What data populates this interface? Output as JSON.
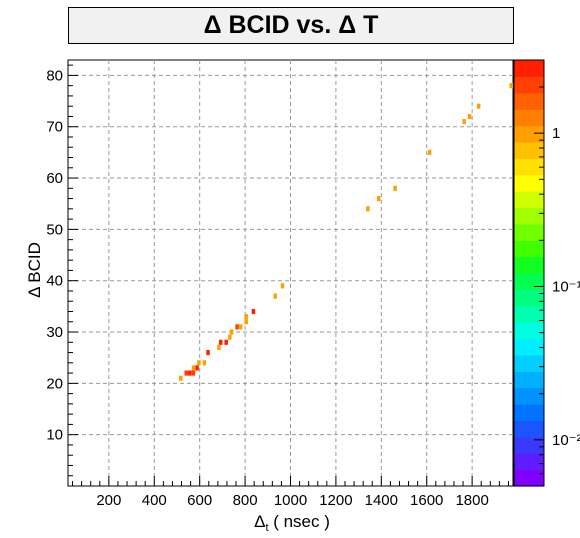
{
  "chart_data": {
    "type": "heatmap",
    "title": "Δ BCID  vs. Δ T",
    "xlabel": "Δt ( nsec )",
    "xlabel_main": "Δ",
    "xlabel_sub": "t",
    "xlabel_tail": " ( nsec )",
    "ylabel": "Δ BCID",
    "xlim": [
      20,
      1980
    ],
    "ylim": [
      0,
      83
    ],
    "x_ticks": [
      200,
      400,
      600,
      800,
      1000,
      1200,
      1400,
      1600,
      1800
    ],
    "y_ticks": [
      10,
      20,
      30,
      40,
      50,
      60,
      70,
      80
    ],
    "grid": true,
    "colorbar": {
      "scale": "log",
      "tick_labels": [
        "1",
        "10⁻¹",
        "10⁻²"
      ],
      "tick_values": [
        1,
        0.1,
        0.01
      ],
      "range": [
        0.005,
        3
      ],
      "colors": [
        "#7f00ff",
        "#5f1dff",
        "#3a3aff",
        "#1a55ff",
        "#0073ff",
        "#0092ff",
        "#00b0ff",
        "#00cfff",
        "#00eeff",
        "#00ffe0",
        "#00ffb0",
        "#00ff80",
        "#00ff50",
        "#10ff20",
        "#40ff00",
        "#70ff00",
        "#a0ff00",
        "#d0ff00",
        "#ffff00",
        "#ffe000",
        "#ffc000",
        "#ffa000",
        "#ff8000",
        "#ff6000",
        "#ff4000",
        "#ff2000"
      ]
    },
    "cells": [
      {
        "x": 513,
        "y": 21,
        "v": 1.0
      },
      {
        "x": 537,
        "y": 22,
        "v": 2.0
      },
      {
        "x": 553,
        "y": 22,
        "v": 2.5
      },
      {
        "x": 569,
        "y": 22,
        "v": 2.0
      },
      {
        "x": 569,
        "y": 23,
        "v": 1.0
      },
      {
        "x": 585,
        "y": 23,
        "v": 2.5
      },
      {
        "x": 593,
        "y": 24,
        "v": 1.0
      },
      {
        "x": 617,
        "y": 24,
        "v": 1.0
      },
      {
        "x": 633,
        "y": 26,
        "v": 2.5
      },
      {
        "x": 681,
        "y": 27,
        "v": 1.0
      },
      {
        "x": 689,
        "y": 28,
        "v": 2.5
      },
      {
        "x": 713,
        "y": 28,
        "v": 2.5
      },
      {
        "x": 729,
        "y": 29,
        "v": 1.0
      },
      {
        "x": 737,
        "y": 30,
        "v": 1.0
      },
      {
        "x": 761,
        "y": 31,
        "v": 2.0
      },
      {
        "x": 777,
        "y": 31,
        "v": 1.0
      },
      {
        "x": 801,
        "y": 32,
        "v": 1.0
      },
      {
        "x": 801,
        "y": 33,
        "v": 1.0
      },
      {
        "x": 833,
        "y": 34,
        "v": 2.5
      },
      {
        "x": 929,
        "y": 37,
        "v": 1.0
      },
      {
        "x": 961,
        "y": 39,
        "v": 1.0
      },
      {
        "x": 1337,
        "y": 54,
        "v": 1.0
      },
      {
        "x": 1385,
        "y": 56,
        "v": 1.0
      },
      {
        "x": 1457,
        "y": 58,
        "v": 1.0
      },
      {
        "x": 1609,
        "y": 65,
        "v": 1.0
      },
      {
        "x": 1761,
        "y": 71,
        "v": 1.0
      },
      {
        "x": 1785,
        "y": 72,
        "v": 1.0
      },
      {
        "x": 1825,
        "y": 74,
        "v": 1.0
      },
      {
        "x": 1969,
        "y": 78,
        "v": 1.0
      }
    ]
  }
}
